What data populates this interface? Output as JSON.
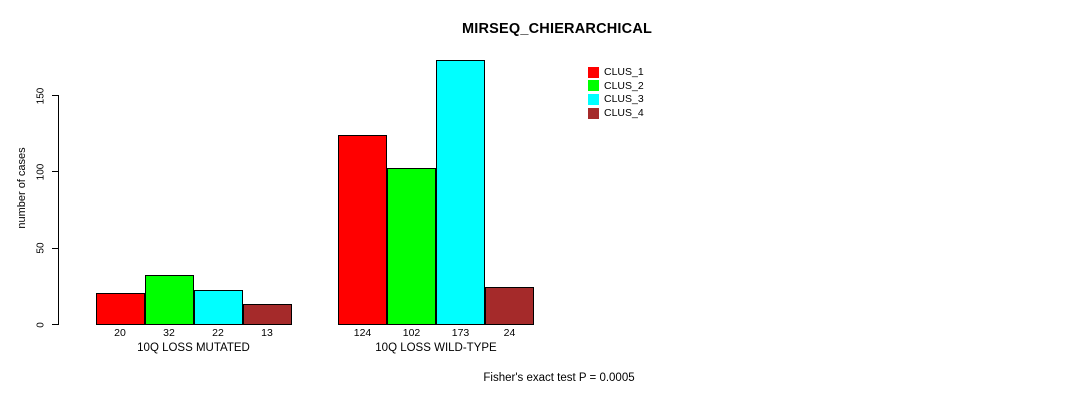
{
  "chart_data": {
    "type": "bar",
    "title": "MIRSEQ_CHIERARCHICAL",
    "xlabel": "",
    "ylabel": "number of cases",
    "ylim": [
      0,
      175
    ],
    "yticks": [
      0,
      50,
      100,
      150
    ],
    "grid": false,
    "legend_position": "top-right",
    "categories": [
      "10Q LOSS MUTATED",
      "10Q LOSS WILD-TYPE"
    ],
    "series": [
      {
        "name": "CLUS_1",
        "color": "#FF0000",
        "values": [
          20,
          124
        ]
      },
      {
        "name": "CLUS_2",
        "color": "#00FF00",
        "values": [
          32,
          102
        ]
      },
      {
        "name": "CLUS_3",
        "color": "#00FFFF",
        "values": [
          22,
          173
        ]
      },
      {
        "name": "CLUS_4",
        "color": "#A52A2A",
        "values": [
          13,
          24
        ]
      }
    ],
    "bar_value_labels_shown": true,
    "annotation": "Fisher's exact test P = 0.0005"
  }
}
